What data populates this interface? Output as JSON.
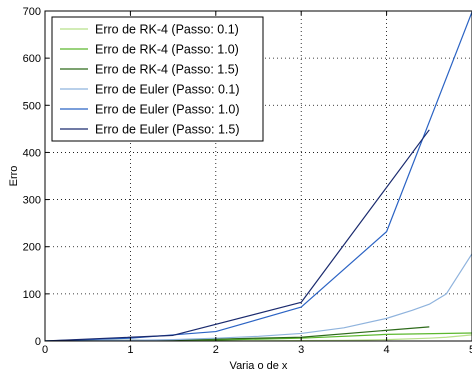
{
  "chart_data": {
    "type": "line",
    "xlabel": "Varia    o de x",
    "ylabel": "Erro",
    "xlim": [
      0,
      5
    ],
    "ylim": [
      0,
      700
    ],
    "xticks": [
      0,
      1,
      2,
      3,
      4,
      5
    ],
    "yticks": [
      0,
      100,
      200,
      300,
      400,
      500,
      600,
      700
    ],
    "grid": true,
    "legend_position": "top-left",
    "series": [
      {
        "name": "Erro de RK-4 (Passo: 0.1)",
        "color": "#b8e08a",
        "points": [
          [
            0,
            0
          ],
          [
            0.5,
            0.02
          ],
          [
            1,
            0.05
          ],
          [
            1.5,
            0.1
          ],
          [
            2,
            0.2
          ],
          [
            2.5,
            0.4
          ],
          [
            3,
            0.8
          ],
          [
            3.5,
            1.5
          ],
          [
            4,
            3
          ],
          [
            4.5,
            6
          ],
          [
            4.7,
            8
          ],
          [
            5,
            13
          ]
        ]
      },
      {
        "name": "Erro de RK-4 (Passo: 1.0)",
        "color": "#5cb82e",
        "points": [
          [
            0,
            0
          ],
          [
            1,
            0.5
          ],
          [
            2,
            2
          ],
          [
            3,
            6
          ],
          [
            4,
            14
          ],
          [
            5,
            17
          ]
        ]
      },
      {
        "name": "Erro de RK-4 (Passo: 1.5)",
        "color": "#2d6a1a",
        "points": [
          [
            0,
            0
          ],
          [
            1.5,
            2
          ],
          [
            3,
            8
          ],
          [
            4.5,
            30
          ]
        ]
      },
      {
        "name": "Erro de Euler (Passo: 0.1)",
        "color": "#8fb3dd",
        "points": [
          [
            0,
            0
          ],
          [
            0.5,
            0.5
          ],
          [
            1,
            1.5
          ],
          [
            1.5,
            3
          ],
          [
            2,
            6
          ],
          [
            2.5,
            10
          ],
          [
            3,
            16
          ],
          [
            3.5,
            28
          ],
          [
            4,
            48
          ],
          [
            4.3,
            65
          ],
          [
            4.5,
            78
          ],
          [
            4.7,
            100
          ],
          [
            5,
            185
          ]
        ]
      },
      {
        "name": "Erro de Euler (Passo: 1.0)",
        "color": "#2b63c4",
        "points": [
          [
            0,
            0
          ],
          [
            1,
            6
          ],
          [
            2,
            20
          ],
          [
            3,
            72
          ],
          [
            4,
            232
          ],
          [
            5,
            698
          ]
        ]
      },
      {
        "name": "Erro de Euler (Passo: 1.5)",
        "color": "#1a2a6e",
        "points": [
          [
            0,
            0
          ],
          [
            1.5,
            12
          ],
          [
            3,
            82
          ],
          [
            4.5,
            448
          ]
        ]
      }
    ]
  }
}
